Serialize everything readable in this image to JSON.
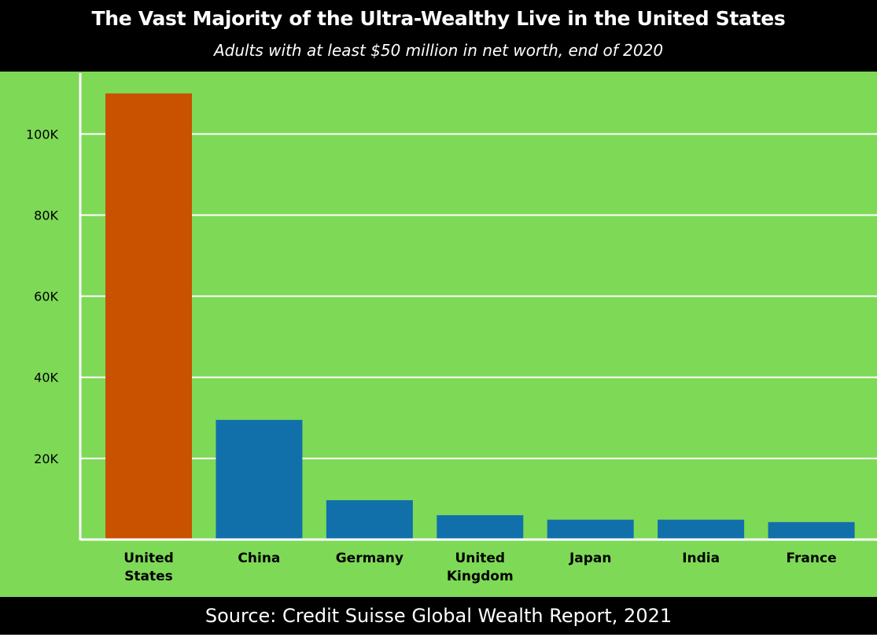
{
  "header": {
    "title": "The Vast Majority of the Ultra-Wealthy Live in the United States",
    "subtitle": "Adults with at least $50 million in net worth, end of 2020"
  },
  "footer": {
    "source": "Source: Credit Suisse Global Wealth Report, 2021"
  },
  "colors": {
    "background": "#7ed957",
    "highlight_bar": "#c85200",
    "bar": "#1170aa",
    "gridline": "#ffffff",
    "banner": "#000000"
  },
  "chart_data": {
    "type": "bar",
    "categories": [
      [
        "United",
        "States"
      ],
      [
        "China"
      ],
      [
        "Germany"
      ],
      [
        "United",
        "Kingdom"
      ],
      [
        "Japan"
      ],
      [
        "India"
      ],
      [
        "France"
      ]
    ],
    "values": [
      110000,
      29500,
      9700,
      6000,
      4900,
      4900,
      4300
    ],
    "highlight_index": 0,
    "ylim": [
      0,
      115000
    ],
    "yticks": [
      20000,
      40000,
      60000,
      80000,
      100000
    ],
    "ytick_labels": [
      "20K",
      "40K",
      "60K",
      "80K",
      "100K"
    ],
    "grid": true,
    "xlabel": "",
    "ylabel": ""
  }
}
